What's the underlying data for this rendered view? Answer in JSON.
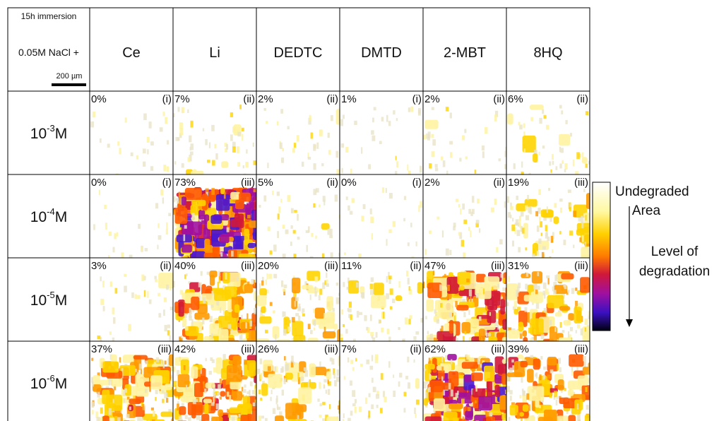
{
  "header": {
    "immersion": "15h immersion",
    "solution": "0.05M NaCl +",
    "scale_bar": "200 µm"
  },
  "columns": [
    "Ce",
    "Li",
    "DEDTC",
    "DMTD",
    "2-MBT",
    "8HQ"
  ],
  "rows": [
    {
      "label": {
        "base": "10",
        "exponent": "-3",
        "unit": "M"
      },
      "cells": [
        {
          "percent": "0%",
          "grade": "(i)"
        },
        {
          "percent": "7%",
          "grade": "(ii)"
        },
        {
          "percent": "2%",
          "grade": "(ii)"
        },
        {
          "percent": "1%",
          "grade": "(i)"
        },
        {
          "percent": "2%",
          "grade": "(ii)"
        },
        {
          "percent": "6%",
          "grade": "(ii)"
        }
      ]
    },
    {
      "label": {
        "base": "10",
        "exponent": "-4",
        "unit": "M"
      },
      "cells": [
        {
          "percent": "0%",
          "grade": "(i)"
        },
        {
          "percent": "73%",
          "grade": "(iii)"
        },
        {
          "percent": "5%",
          "grade": "(ii)"
        },
        {
          "percent": "0%",
          "grade": "(i)"
        },
        {
          "percent": "2%",
          "grade": "(ii)"
        },
        {
          "percent": "19%",
          "grade": "(iii)"
        }
      ]
    },
    {
      "label": {
        "base": "10",
        "exponent": "-5",
        "unit": "M"
      },
      "cells": [
        {
          "percent": "3%",
          "grade": "(ii)"
        },
        {
          "percent": "40%",
          "grade": "(iii)"
        },
        {
          "percent": "20%",
          "grade": "(iii)"
        },
        {
          "percent": "11%",
          "grade": "(ii)"
        },
        {
          "percent": "47%",
          "grade": "(iii)"
        },
        {
          "percent": "31%",
          "grade": "(iii)"
        }
      ]
    },
    {
      "label": {
        "base": "10",
        "exponent": "-6",
        "unit": "M"
      },
      "cells": [
        {
          "percent": "37%",
          "grade": "(iii)"
        },
        {
          "percent": "42%",
          "grade": "(iii)"
        },
        {
          "percent": "26%",
          "grade": "(iii)"
        },
        {
          "percent": "7%",
          "grade": "(ii)"
        },
        {
          "percent": "62%",
          "grade": "(iii)"
        },
        {
          "percent": "39%",
          "grade": "(iii)"
        }
      ]
    }
  ],
  "legend": {
    "top": [
      "Undegraded",
      "Area"
    ],
    "bottom": [
      "Level of",
      "degradation"
    ]
  }
}
